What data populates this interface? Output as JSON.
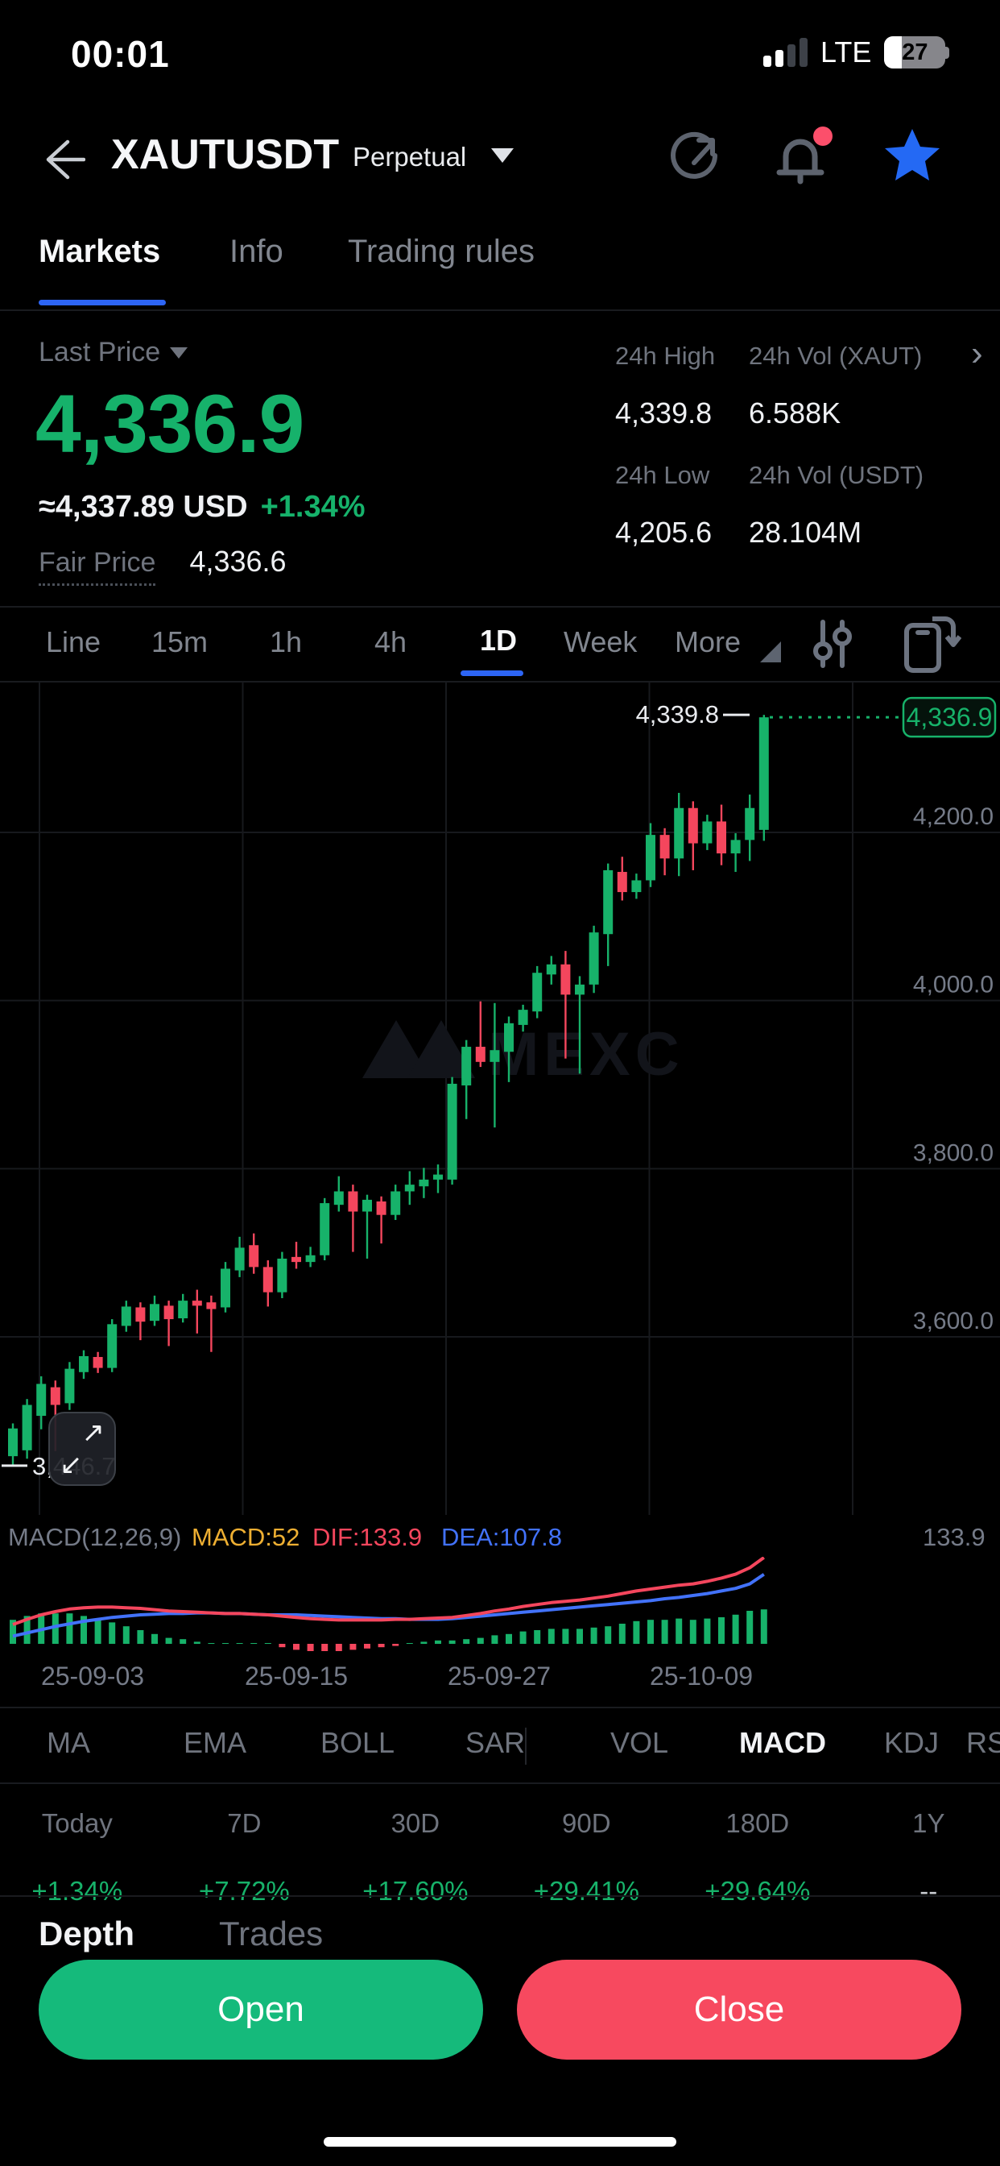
{
  "status_bar": {
    "time": "00:01",
    "network": "LTE",
    "battery_percent": "27"
  },
  "header": {
    "symbol": "XAUTUSDT",
    "contract_type": "Perpetual"
  },
  "nav_tabs": {
    "items": [
      {
        "label": "Markets",
        "active": true
      },
      {
        "label": "Info",
        "active": false
      },
      {
        "label": "Trading rules",
        "active": false
      }
    ]
  },
  "price_panel": {
    "last_price_label": "Last Price",
    "last_price": "4,336.9",
    "usd_value": "≈4,337.89 USD",
    "change_percent": "+1.34%",
    "fair_price_label": "Fair Price",
    "fair_price": "4,336.6",
    "stats": [
      {
        "label": "24h High",
        "value": "4,339.8"
      },
      {
        "label": "24h Vol (XAUT)",
        "value": "6.588K"
      },
      {
        "label": "24h Low",
        "value": "4,205.6"
      },
      {
        "label": "24h Vol  (USDT)",
        "value": "28.104M"
      }
    ]
  },
  "timeframe_bar": {
    "items": [
      {
        "label": "Line",
        "active": false
      },
      {
        "label": "15m",
        "active": false
      },
      {
        "label": "1h",
        "active": false
      },
      {
        "label": "4h",
        "active": false
      },
      {
        "label": "1D",
        "active": true
      },
      {
        "label": "Week",
        "active": false
      },
      {
        "label": "More",
        "active": false
      }
    ]
  },
  "chart_data": {
    "type": "candlestick",
    "symbol": "XAUTUSDT",
    "interval": "1D",
    "watermark": "MEXC",
    "high_annotation": "4,339.8",
    "low_annotation": "3,446.7",
    "current_price_tag": "4,336.9",
    "y_axis": {
      "ticks": [
        {
          "label": "4,200.0",
          "price": 4200
        },
        {
          "label": "4,000.0",
          "price": 4000
        },
        {
          "label": "3,800.0",
          "price": 3800
        },
        {
          "label": "3,600.0",
          "price": 3600
        }
      ]
    },
    "x_axis": {
      "labels": [
        "25-09-03",
        "25-09-15",
        "25-09-27",
        "25-10-09"
      ]
    },
    "candles": [
      [
        3458,
        3497,
        3446.7,
        3491
      ],
      [
        3465,
        3526,
        3455,
        3519
      ],
      [
        3506,
        3553,
        3490,
        3544
      ],
      [
        3540,
        3548,
        3464,
        3519
      ],
      [
        3521,
        3570,
        3513,
        3562
      ],
      [
        3558,
        3584,
        3550,
        3577
      ],
      [
        3576,
        3582,
        3557,
        3563
      ],
      [
        3563,
        3621,
        3558,
        3615
      ],
      [
        3613,
        3643,
        3606,
        3636
      ],
      [
        3635,
        3641,
        3596,
        3618
      ],
      [
        3619,
        3649,
        3613,
        3639
      ],
      [
        3637,
        3643,
        3589,
        3621
      ],
      [
        3622,
        3651,
        3617,
        3643
      ],
      [
        3643,
        3656,
        3604,
        3637
      ],
      [
        3641,
        3649,
        3582,
        3633
      ],
      [
        3635,
        3689,
        3629,
        3681
      ],
      [
        3679,
        3719,
        3671,
        3706
      ],
      [
        3709,
        3723,
        3675,
        3683
      ],
      [
        3683,
        3691,
        3636,
        3653
      ],
      [
        3653,
        3701,
        3646,
        3693
      ],
      [
        3695,
        3713,
        3681,
        3689
      ],
      [
        3689,
        3707,
        3683,
        3697
      ],
      [
        3697,
        3765,
        3691,
        3759
      ],
      [
        3757,
        3791,
        3749,
        3773
      ],
      [
        3773,
        3781,
        3701,
        3749
      ],
      [
        3749,
        3769,
        3693,
        3763
      ],
      [
        3761,
        3767,
        3711,
        3745
      ],
      [
        3745,
        3781,
        3739,
        3773
      ],
      [
        3773,
        3797,
        3757,
        3781
      ],
      [
        3779,
        3801,
        3765,
        3787
      ],
      [
        3787,
        3805,
        3771,
        3793
      ],
      [
        3787,
        3909,
        3781,
        3901
      ],
      [
        3899,
        3953,
        3859,
        3945
      ],
      [
        3945,
        3999,
        3921,
        3927
      ],
      [
        3927,
        3997,
        3849,
        3941
      ],
      [
        3939,
        3981,
        3903,
        3973
      ],
      [
        3971,
        3995,
        3963,
        3989
      ],
      [
        3987,
        4041,
        3979,
        4033
      ],
      [
        4031,
        4053,
        4019,
        4043
      ],
      [
        4043,
        4059,
        3931,
        4007
      ],
      [
        4007,
        4029,
        3913,
        4019
      ],
      [
        4019,
        4089,
        4009,
        4081
      ],
      [
        4079,
        4163,
        4041,
        4155
      ],
      [
        4153,
        4171,
        4119,
        4129
      ],
      [
        4129,
        4151,
        4121,
        4143
      ],
      [
        4143,
        4211,
        4135,
        4197
      ],
      [
        4197,
        4205,
        4149,
        4169
      ],
      [
        4169,
        4247,
        4148,
        4229
      ],
      [
        4229,
        4237,
        4155,
        4187
      ],
      [
        4187,
        4221,
        4179,
        4213
      ],
      [
        4213,
        4233,
        4161,
        4175
      ],
      [
        4175,
        4199,
        4153,
        4191
      ],
      [
        4191,
        4245,
        4166,
        4229
      ],
      [
        4203,
        4339.8,
        4190,
        4336.9
      ]
    ],
    "macd": {
      "params_label": "MACD(12,26,9)",
      "macd_label": "MACD:52",
      "dif_label": "DIF:133.9",
      "dea_label": "DEA:107.8",
      "scale_max_label": "133.9",
      "dif": [
        30,
        38,
        45,
        50,
        54,
        56,
        57,
        57,
        56,
        55,
        53,
        51,
        50,
        49,
        48,
        47,
        47,
        46,
        45,
        43,
        41,
        39,
        38,
        37,
        37,
        37,
        37,
        38,
        38,
        39,
        40,
        41,
        44,
        47,
        51,
        54,
        58,
        61,
        64,
        66,
        68,
        71,
        74,
        78,
        82,
        85,
        88,
        91,
        93,
        97,
        102,
        108,
        118,
        133.9
      ],
      "dea": [
        12,
        17,
        22,
        27,
        31,
        35,
        38,
        41,
        43,
        45,
        46,
        47,
        47,
        48,
        48,
        47,
        47,
        46,
        45,
        45,
        45,
        44,
        43,
        42,
        41,
        40,
        39,
        39,
        38,
        38,
        38,
        39,
        41,
        43,
        45,
        47,
        49,
        51,
        53,
        55,
        57,
        59,
        61,
        63,
        65,
        67,
        70,
        72,
        75,
        78,
        82,
        86,
        93,
        107.8
      ]
    }
  },
  "indicator_tabs": {
    "items": [
      {
        "label": "MA",
        "active": false
      },
      {
        "label": "EMA",
        "active": false
      },
      {
        "label": "BOLL",
        "active": false
      },
      {
        "label": "SAR",
        "active": false
      },
      {
        "label": "VOL",
        "active": false
      },
      {
        "label": "MACD",
        "active": true
      },
      {
        "label": "KDJ",
        "active": false
      },
      {
        "label": "RSI",
        "active": false
      }
    ]
  },
  "performance": {
    "columns": [
      {
        "label": "Today",
        "value": "+1.34%"
      },
      {
        "label": "7D",
        "value": "+7.72%"
      },
      {
        "label": "30D",
        "value": "+17.60%"
      },
      {
        "label": "90D",
        "value": "+29.41%"
      },
      {
        "label": "180D",
        "value": "+29.64%"
      },
      {
        "label": "1Y",
        "value": "--"
      }
    ]
  },
  "bottom_tabs": {
    "depth": "Depth",
    "trades": "Trades"
  },
  "actions": {
    "open_label": "Open",
    "close_label": "Close"
  },
  "colors": {
    "up_green": "#17b26a",
    "down_red": "#f4465d",
    "accent_blue": "#2d65f5",
    "star_blue": "#2469f4",
    "macd_orange": "#eeaf32",
    "dif_red": "#f4465d",
    "dea_blue": "#4272fa",
    "open_button": "#15ba7b",
    "close_button": "#f7495f",
    "notification_dot": "#fc4f6b"
  }
}
